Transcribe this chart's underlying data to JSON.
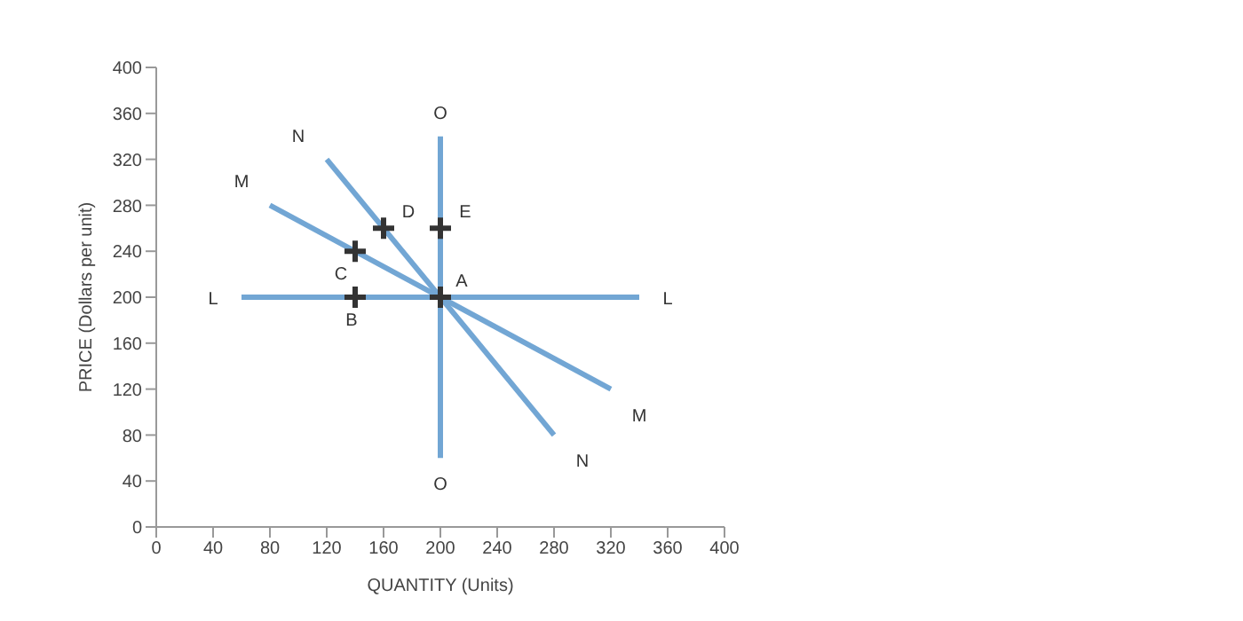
{
  "chart_data": {
    "type": "line",
    "xlabel": "QUANTITY (Units)",
    "ylabel": "PRICE (Dollars per unit)",
    "xlim": [
      0,
      400
    ],
    "ylim": [
      0,
      400
    ],
    "xticks": [
      0,
      40,
      80,
      120,
      160,
      200,
      240,
      280,
      320,
      360,
      400
    ],
    "yticks": [
      0,
      40,
      80,
      120,
      160,
      200,
      240,
      280,
      320,
      360,
      400
    ],
    "grid": false,
    "legend": false,
    "line_style": "solid",
    "series": [
      {
        "name": "L",
        "color": "#72a6d4",
        "marker": "none",
        "x": [
          60,
          340
        ],
        "values": [
          200,
          200
        ]
      },
      {
        "name": "M",
        "color": "#72a6d4",
        "marker": "none",
        "x": [
          80,
          320
        ],
        "values": [
          280,
          120
        ]
      },
      {
        "name": "N",
        "color": "#72a6d4",
        "marker": "none",
        "x": [
          120,
          280
        ],
        "values": [
          320,
          80
        ]
      },
      {
        "name": "O",
        "color": "#72a6d4",
        "marker": "none",
        "x": [
          200,
          200
        ],
        "values": [
          340,
          60
        ]
      },
      {
        "type": "scatter",
        "color": "#333333",
        "marker": "cross",
        "x": [
          200,
          140,
          140,
          160,
          200
        ],
        "values": [
          200,
          200,
          240,
          260,
          260
        ],
        "value_labels": [
          "A",
          "B",
          "C",
          "D",
          "E"
        ]
      }
    ]
  }
}
